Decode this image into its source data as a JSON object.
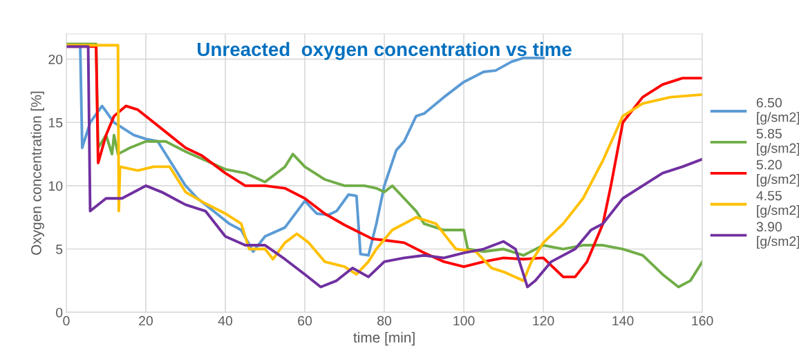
{
  "chart_data": {
    "type": "line",
    "title": "Unreacted  oxygen concentration vs time",
    "xlabel": "time [min]",
    "ylabel": "Oxygen concentration [%]",
    "xlim": [
      0,
      160
    ],
    "xticks": [
      0,
      20,
      40,
      60,
      80,
      100,
      120,
      140,
      160
    ],
    "ylim": [
      0,
      22
    ],
    "yticks": [
      0,
      5,
      10,
      15,
      20
    ],
    "grid": true,
    "legend": "right",
    "marker": "none",
    "line_style": "solid",
    "series": [
      {
        "name": "6.50\n[g/sm2]",
        "color": "#5b9bd5",
        "x": [
          0,
          3.5,
          4,
          6,
          9,
          12,
          17,
          20,
          23,
          28,
          30,
          33,
          37,
          41,
          44,
          47,
          50,
          55,
          60,
          63,
          66,
          68,
          71,
          73,
          74,
          76,
          78,
          80,
          83,
          85,
          88,
          90,
          95,
          100,
          105,
          108,
          112,
          115,
          120
        ],
        "values": [
          21,
          21,
          13,
          15,
          16.3,
          15,
          14,
          13.7,
          13.5,
          11,
          10,
          9,
          8,
          7,
          6.5,
          4.8,
          6,
          6.7,
          8.8,
          7.8,
          7.7,
          8,
          9.3,
          9.2,
          4.6,
          4.5,
          7,
          10,
          12.8,
          13.5,
          15.5,
          15.7,
          17,
          18.2,
          19,
          19.1,
          19.8,
          20.1,
          20.1
        ]
      },
      {
        "name": "5.85\n[g/sm2]",
        "color": "#70ad47",
        "x": [
          0,
          7.5,
          8,
          10,
          11.5,
          12,
          13,
          16,
          20,
          25,
          30,
          35,
          40,
          45,
          50,
          55,
          57,
          60,
          65,
          70,
          75,
          78,
          80,
          82,
          85,
          88,
          90,
          95,
          100,
          101,
          105,
          110,
          115,
          120,
          125,
          130,
          135,
          140,
          145,
          150,
          154,
          157,
          160
        ],
        "values": [
          21.2,
          21.2,
          13,
          14,
          12.5,
          14,
          12.5,
          13,
          13.5,
          13.5,
          12.7,
          12,
          11.3,
          11,
          10.3,
          11.5,
          12.5,
          11.5,
          10.5,
          10,
          10,
          9.8,
          9.5,
          10,
          9,
          8,
          7,
          6.5,
          6.5,
          5,
          4.8,
          5,
          4.5,
          5.3,
          5,
          5.3,
          5.3,
          5,
          4.5,
          3,
          2,
          2.5,
          4
        ]
      },
      {
        "name": "5.20\n[g/sm2]",
        "color": "#ff0000",
        "x": [
          0,
          7.5,
          8,
          10,
          12,
          15,
          18,
          22,
          26,
          30,
          34,
          40,
          45,
          50,
          55,
          60,
          65,
          70,
          77,
          80,
          85,
          90,
          95,
          100,
          105,
          110,
          115,
          120,
          125,
          128,
          131,
          135,
          137,
          140,
          145,
          150,
          155,
          160
        ],
        "values": [
          21,
          21,
          11.8,
          14,
          15.5,
          16.3,
          16,
          15,
          14,
          13,
          12.4,
          11,
          10,
          10,
          9.8,
          9,
          7.8,
          6.9,
          5.8,
          5.7,
          5.5,
          4.7,
          4,
          3.6,
          4,
          4.3,
          4.2,
          4.3,
          2.8,
          2.8,
          4,
          7,
          10,
          15,
          17,
          18,
          18.5,
          18.5
        ]
      },
      {
        "name": "4.55\n[g/sm2]",
        "color": "#ffc000",
        "x": [
          0,
          13,
          13.2,
          13.5,
          18,
          22,
          26,
          30,
          35,
          40,
          44,
          46,
          50,
          52,
          55,
          58,
          61,
          65,
          70,
          73,
          76,
          78,
          82,
          88,
          93,
          98,
          103,
          107,
          110,
          115,
          117,
          120,
          125,
          130,
          135,
          140,
          145,
          152,
          160
        ],
        "values": [
          21.1,
          21.1,
          8,
          11.5,
          11.2,
          11.5,
          11.5,
          9.5,
          8.6,
          7.8,
          7,
          5,
          5,
          4.2,
          5.5,
          6.2,
          5.5,
          4,
          3.6,
          3,
          4,
          5,
          6.5,
          7.5,
          7,
          5,
          4.8,
          3.5,
          3.2,
          2.5,
          4,
          5.5,
          7,
          9,
          12,
          15.5,
          16.5,
          17,
          17.2
        ]
      },
      {
        "name": "3.90\n[g/sm2]",
        "color": "#7030a0",
        "x": [
          0,
          5.5,
          6,
          10,
          14,
          20,
          24,
          30,
          35,
          40,
          45,
          50,
          55,
          60,
          64,
          68,
          72,
          76,
          80,
          85,
          90,
          95,
          100,
          105,
          110,
          113,
          116,
          118,
          122,
          128,
          132,
          135,
          140,
          145,
          150,
          155,
          160
        ],
        "values": [
          21,
          21,
          8,
          9,
          9,
          10,
          9.5,
          8.5,
          8,
          6,
          5.3,
          5.3,
          4.2,
          3,
          2,
          2.5,
          3.5,
          2.8,
          4,
          4.3,
          4.5,
          4.3,
          4.7,
          5,
          5.6,
          5,
          2,
          2.5,
          4,
          5,
          6.5,
          7,
          9,
          10,
          11,
          11.5,
          12.1
        ]
      }
    ]
  }
}
